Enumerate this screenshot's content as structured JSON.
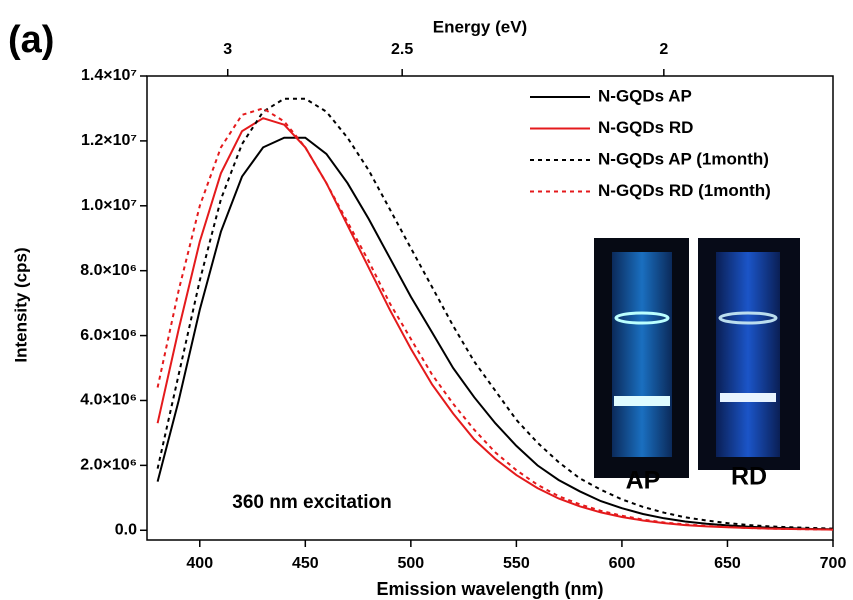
{
  "chart_data": {
    "type": "line",
    "panel_label": "(a)",
    "xlabel": "Emission wavelength (nm)",
    "ylabel": "Intensity (cps)",
    "x2label": "Energy (eV)",
    "annotation": "360 nm excitation",
    "inset_labels": [
      "AP",
      "RD"
    ],
    "legend": "upper right",
    "xlim": [
      375,
      700
    ],
    "xticks": [
      400,
      450,
      500,
      550,
      600,
      650,
      700
    ],
    "x2lim": [
      3.306,
      1.771
    ],
    "x2scale": "reciprocal",
    "x2ticks": [
      3,
      2.5,
      2
    ],
    "ylim": [
      -300000,
      14000000
    ],
    "yticks": [
      {
        "value": 0,
        "label": "0.0"
      },
      {
        "value": 2000000,
        "label": "2.0×10⁶"
      },
      {
        "value": 4000000,
        "label": "4.0×10⁶"
      },
      {
        "value": 6000000,
        "label": "6.0×10⁶"
      },
      {
        "value": 8000000,
        "label": "8.0×10⁶"
      },
      {
        "value": 10000000,
        "label": "1.0×10⁷"
      },
      {
        "value": 12000000,
        "label": "1.2×10⁷"
      },
      {
        "value": 14000000,
        "label": "1.4×10⁷"
      }
    ],
    "x": [
      380,
      390,
      400,
      410,
      420,
      430,
      440,
      450,
      460,
      470,
      480,
      490,
      500,
      510,
      520,
      530,
      540,
      550,
      560,
      570,
      580,
      590,
      600,
      610,
      620,
      630,
      640,
      650,
      660,
      670,
      680,
      690,
      700
    ],
    "series": [
      {
        "name": "N-GQDs AP",
        "color": "#000000",
        "dash": "solid",
        "values": [
          1500000.0,
          4000000.0,
          6800000.0,
          9200000.0,
          10900000.0,
          11800000.0,
          12100000.0,
          12100000.0,
          11600000.0,
          10700000.0,
          9600000.0,
          8400000.0,
          7200000.0,
          6100000.0,
          5000000.0,
          4100000.0,
          3300000.0,
          2600000.0,
          2000000.0,
          1550000.0,
          1200000.0,
          900000.0,
          680000.0,
          500000.0,
          370000.0,
          270000.0,
          200000.0,
          150000.0,
          110000.0,
          80000.0,
          60000.0,
          40000.0,
          30000.0
        ]
      },
      {
        "name": "N-GQDs RD",
        "color": "#e41a1c",
        "dash": "solid",
        "values": [
          3300000.0,
          6200000.0,
          8900000.0,
          11000000.0,
          12300000.0,
          12700000.0,
          12500000.0,
          11800000.0,
          10700000.0,
          9400000.0,
          8100000.0,
          6800000.0,
          5600000.0,
          4500000.0,
          3600000.0,
          2800000.0,
          2200000.0,
          1700000.0,
          1300000.0,
          980000.0,
          740000.0,
          550000.0,
          410000.0,
          300000.0,
          220000.0,
          160000.0,
          120000.0,
          90000.0,
          70000.0,
          50000.0,
          40000.0,
          30000.0,
          20000.0
        ]
      },
      {
        "name": "N-GQDs AP (1month)",
        "color": "#000000",
        "dash": "dotted",
        "values": [
          1900000.0,
          4800000.0,
          7700000.0,
          10200000.0,
          11900000.0,
          12900000.0,
          13300000.0,
          13300000.0,
          12900000.0,
          12100000.0,
          11100000.0,
          9900000.0,
          8700000.0,
          7500000.0,
          6300000.0,
          5200000.0,
          4300000.0,
          3400000.0,
          2700000.0,
          2100000.0,
          1600000.0,
          1250000.0,
          950000.0,
          720000.0,
          540000.0,
          400000.0,
          300000.0,
          220000.0,
          160000.0,
          120000.0,
          90000.0,
          70000.0,
          50000.0
        ]
      },
      {
        "name": "N-GQDs RD (1month)",
        "color": "#e41a1c",
        "dash": "dotted",
        "values": [
          4400000.0,
          7400000.0,
          10000000.0,
          11800000.0,
          12800000.0,
          13000000.0,
          12600000.0,
          11800000.0,
          10700000.0,
          9500000.0,
          8300000.0,
          7000000.0,
          5900000.0,
          4800000.0,
          3900000.0,
          3100000.0,
          2400000.0,
          1850000.0,
          1400000.0,
          1050000.0,
          800000.0,
          600000.0,
          450000.0,
          330000.0,
          240000.0,
          180000.0,
          130000.0,
          100000.0,
          70000.0,
          50000.0,
          40000.0,
          30000.0,
          20000.0
        ]
      }
    ]
  }
}
